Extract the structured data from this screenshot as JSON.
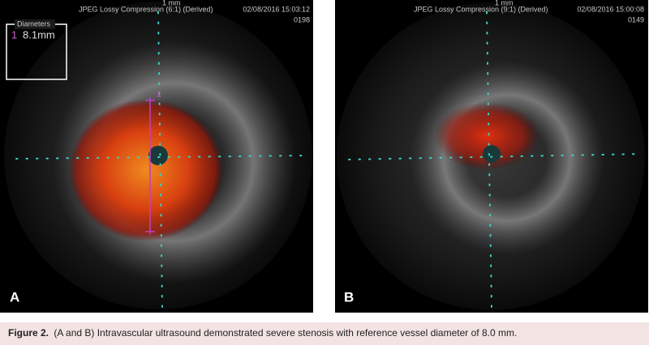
{
  "panels": [
    {
      "header": "JPEG Lossy Compression (6:1) (Derived)",
      "timestamp": "02/08/2016 15:03:12",
      "frame": "0198",
      "scale": "1 mm",
      "legend": {
        "title": "Diameters",
        "index": "1",
        "value": "8.1mm"
      },
      "marker": "1",
      "label": "A"
    },
    {
      "header": "JPEG Lossy Compression (9:1) (Derived)",
      "timestamp": "02/08/2016 15:00:08",
      "frame": "0149",
      "scale": "1 mm",
      "label": "B"
    }
  ],
  "caption": {
    "label": "Figure 2.",
    "text": "(A and B) Intravascular ultrasound demonstrated severe stenosis with reference vessel diameter of 8.0 mm."
  }
}
